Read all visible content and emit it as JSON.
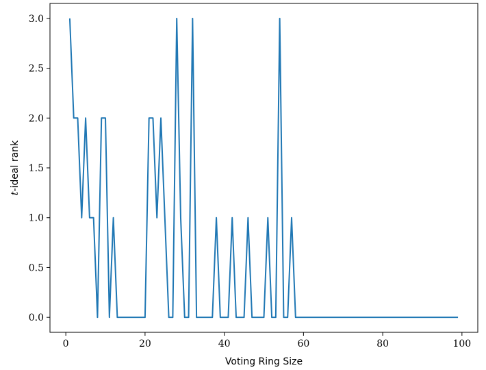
{
  "chart_data": {
    "type": "line",
    "title": "",
    "xlabel": "Voting Ring Size",
    "ylabel_var": "t",
    "ylabel_rest": "-ideal rank",
    "xlim": [
      -4,
      104
    ],
    "ylim": [
      -0.15,
      3.15
    ],
    "xticks": [
      0,
      20,
      40,
      60,
      80,
      100
    ],
    "xtick_labels": [
      "0",
      "20",
      "40",
      "60",
      "80",
      "100"
    ],
    "yticks": [
      0,
      0.5,
      1,
      1.5,
      2,
      2.5,
      3
    ],
    "ytick_labels": [
      "0.0",
      "0.5",
      "1.0",
      "1.5",
      "2.0",
      "2.5",
      "3.0"
    ],
    "grid": false,
    "series": [
      {
        "color": "#1f77b4",
        "x": [
          1,
          2,
          3,
          4,
          5,
          6,
          7,
          8,
          9,
          10,
          11,
          12,
          13,
          14,
          15,
          16,
          17,
          18,
          19,
          20,
          21,
          22,
          23,
          24,
          25,
          26,
          27,
          28,
          29,
          30,
          31,
          32,
          33,
          34,
          35,
          36,
          37,
          38,
          39,
          40,
          41,
          42,
          43,
          44,
          45,
          46,
          47,
          48,
          49,
          50,
          51,
          52,
          53,
          54,
          55,
          56,
          57,
          58,
          59,
          60,
          61,
          62,
          63,
          64,
          65,
          66,
          67,
          68,
          69,
          70,
          71,
          72,
          73,
          74,
          75,
          76,
          77,
          78,
          79,
          80,
          81,
          82,
          83,
          84,
          85,
          86,
          87,
          88,
          89,
          90,
          91,
          92,
          93,
          94,
          95,
          96,
          97,
          98,
          99
        ],
        "y": [
          3,
          2,
          2,
          1,
          2,
          1,
          1,
          0,
          2,
          2,
          0,
          1,
          0,
          0,
          0,
          0,
          0,
          0,
          0,
          0,
          2,
          2,
          1,
          2,
          1,
          0,
          0,
          3,
          1,
          0,
          0,
          3,
          0,
          0,
          0,
          0,
          0,
          1,
          0,
          0,
          0,
          1,
          0,
          0,
          0,
          1,
          0,
          0,
          0,
          0,
          1,
          0,
          0,
          3,
          0,
          0,
          1,
          0,
          0,
          0,
          0,
          0,
          0,
          0,
          0,
          0,
          0,
          0,
          0,
          0,
          0,
          0,
          0,
          0,
          0,
          0,
          0,
          0,
          0,
          0,
          0,
          0,
          0,
          0,
          0,
          0,
          0,
          0,
          0,
          0,
          0,
          0,
          0,
          0,
          0,
          0,
          0,
          0,
          0
        ]
      }
    ]
  }
}
